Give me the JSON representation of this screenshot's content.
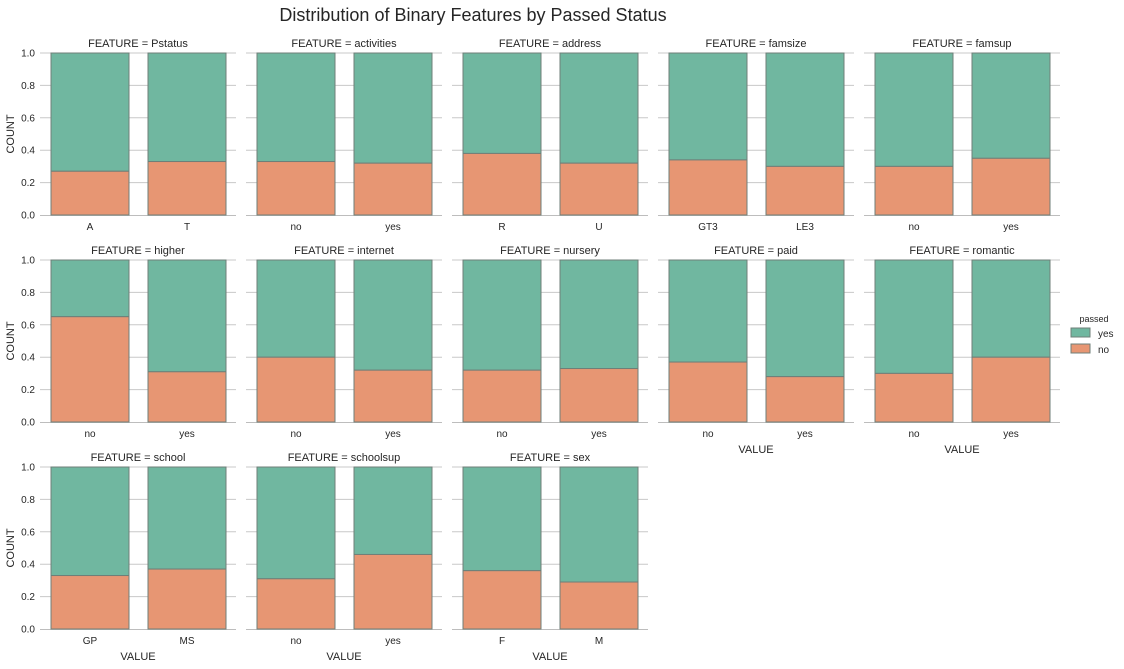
{
  "chart_data": {
    "type": "bar",
    "stacked": true,
    "title": "Distribution of Binary Features by Passed Status",
    "facet_title_prefix": "FEATURE = ",
    "xlabel": "VALUE",
    "ylabel": "COUNT",
    "ylim": [
      0,
      1.0
    ],
    "yticks": [
      "0.0",
      "0.2",
      "0.4",
      "0.6",
      "0.8",
      "1.0"
    ],
    "grid": "horizontal",
    "legend": {
      "title": "passed",
      "placement": "right",
      "entries": [
        {
          "label": "yes",
          "color": "#70b7a0"
        },
        {
          "label": "no",
          "color": "#e79673"
        }
      ]
    },
    "colors": {
      "yes": "#70b7a0",
      "no": "#e79673",
      "bar_edge": "#6f7f78"
    },
    "panels": [
      {
        "feature": "Pstatus",
        "categories": [
          "A",
          "T"
        ],
        "no": [
          0.27,
          0.33
        ],
        "yes": [
          0.73,
          0.67
        ]
      },
      {
        "feature": "activities",
        "categories": [
          "no",
          "yes"
        ],
        "no": [
          0.33,
          0.32
        ],
        "yes": [
          0.67,
          0.68
        ]
      },
      {
        "feature": "address",
        "categories": [
          "R",
          "U"
        ],
        "no": [
          0.38,
          0.32
        ],
        "yes": [
          0.62,
          0.68
        ]
      },
      {
        "feature": "famsize",
        "categories": [
          "GT3",
          "LE3"
        ],
        "no": [
          0.34,
          0.3
        ],
        "yes": [
          0.66,
          0.7
        ]
      },
      {
        "feature": "famsup",
        "categories": [
          "no",
          "yes"
        ],
        "no": [
          0.3,
          0.35
        ],
        "yes": [
          0.7,
          0.65
        ]
      },
      {
        "feature": "higher",
        "categories": [
          "no",
          "yes"
        ],
        "no": [
          0.65,
          0.31
        ],
        "yes": [
          0.35,
          0.69
        ]
      },
      {
        "feature": "internet",
        "categories": [
          "no",
          "yes"
        ],
        "no": [
          0.4,
          0.32
        ],
        "yes": [
          0.6,
          0.68
        ]
      },
      {
        "feature": "nursery",
        "categories": [
          "no",
          "yes"
        ],
        "no": [
          0.32,
          0.33
        ],
        "yes": [
          0.68,
          0.67
        ]
      },
      {
        "feature": "paid",
        "categories": [
          "no",
          "yes"
        ],
        "no": [
          0.37,
          0.28
        ],
        "yes": [
          0.63,
          0.72
        ]
      },
      {
        "feature": "romantic",
        "categories": [
          "no",
          "yes"
        ],
        "no": [
          0.3,
          0.4
        ],
        "yes": [
          0.7,
          0.6
        ]
      },
      {
        "feature": "school",
        "categories": [
          "GP",
          "MS"
        ],
        "no": [
          0.33,
          0.37
        ],
        "yes": [
          0.67,
          0.63
        ]
      },
      {
        "feature": "schoolsup",
        "categories": [
          "no",
          "yes"
        ],
        "no": [
          0.31,
          0.46
        ],
        "yes": [
          0.69,
          0.54
        ]
      },
      {
        "feature": "sex",
        "categories": [
          "F",
          "M"
        ],
        "no": [
          0.36,
          0.29
        ],
        "yes": [
          0.64,
          0.71
        ]
      }
    ],
    "xlabel_panels": [
      "paid",
      "romantic",
      "school",
      "schoolsup",
      "sex"
    ],
    "ylabel_rows": [
      0,
      1,
      2
    ]
  }
}
